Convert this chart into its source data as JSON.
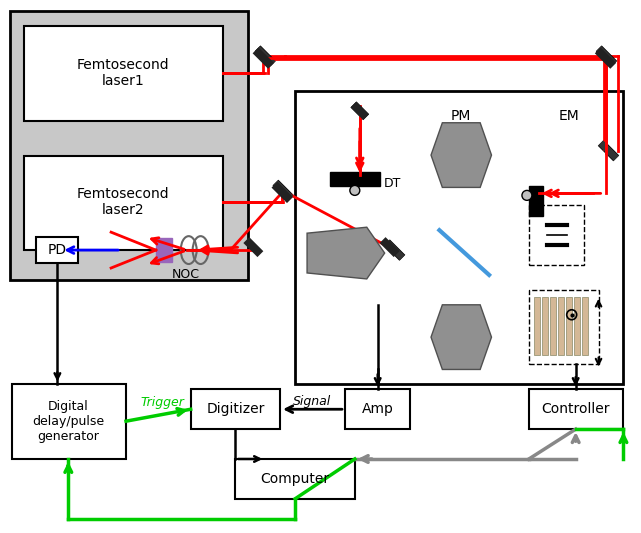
{
  "fig_width": 6.41,
  "fig_height": 5.33,
  "bg_color": "#ffffff",
  "laser_box_color": "#c0c0c0",
  "inner_box_color": "#ffffff",
  "red": "#ff0000",
  "green": "#00cc00",
  "blue": "#0000ff",
  "black": "#000000",
  "gray": "#808080",
  "light_green": "#c8e88a",
  "light_blue": "#87ceeb",
  "labels": {
    "laser1": "Femtosecond\nlaser1",
    "laser2": "Femtosecond\nlaser2",
    "PD": "PD",
    "NOC": "NOC",
    "DT": "DT",
    "PM": "PM",
    "EM": "EM",
    "digital": "Digital\ndelay/pulse\ngenerator",
    "digitizer": "Digitizer",
    "amp": "Amp",
    "computer": "Computer",
    "controller": "Controller",
    "trigger": "Trigger",
    "signal": "Signal"
  }
}
